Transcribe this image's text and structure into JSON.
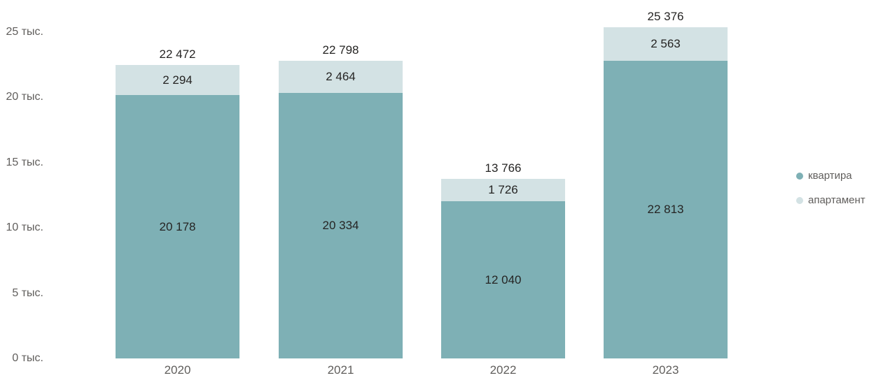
{
  "chart_data": {
    "type": "bar",
    "stacked": true,
    "title": "",
    "categories": [
      "2020",
      "2021",
      "2022",
      "2023"
    ],
    "series": [
      {
        "key": "kvartira",
        "name": "квартира",
        "color": "#7EB0B5",
        "values": [
          20178,
          20334,
          12040,
          22813
        ],
        "labels": [
          "20 178",
          "20 334",
          "12 040",
          "22 813"
        ]
      },
      {
        "key": "apartament",
        "name": "апартамент",
        "color": "#D3E2E4",
        "values": [
          2294,
          2464,
          1726,
          2563
        ],
        "labels": [
          "2 294",
          "2 464",
          "1 726",
          "2 563"
        ]
      }
    ],
    "totals": [
      22472,
      22798,
      13766,
      25376
    ],
    "total_labels": [
      "22 472",
      "22 798",
      "13 766",
      "25 376"
    ],
    "y_axis": {
      "max": 25000,
      "ticks": [
        0,
        5000,
        10000,
        15000,
        20000,
        25000
      ],
      "tick_labels": [
        "0 тыс.",
        "5 тыс.",
        "10 тыс.",
        "15 тыс.",
        "20 тыс.",
        "25 тыс."
      ]
    },
    "legend": {
      "position": "right",
      "entries": [
        "квартира",
        "апартамент"
      ]
    },
    "grid": false
  },
  "colors": {
    "series_kvartira": "#7EB0B5",
    "series_apartament": "#D3E2E4",
    "data_label": "#252423",
    "axis_label": "#605E5C",
    "background": "#FFFFFF"
  }
}
